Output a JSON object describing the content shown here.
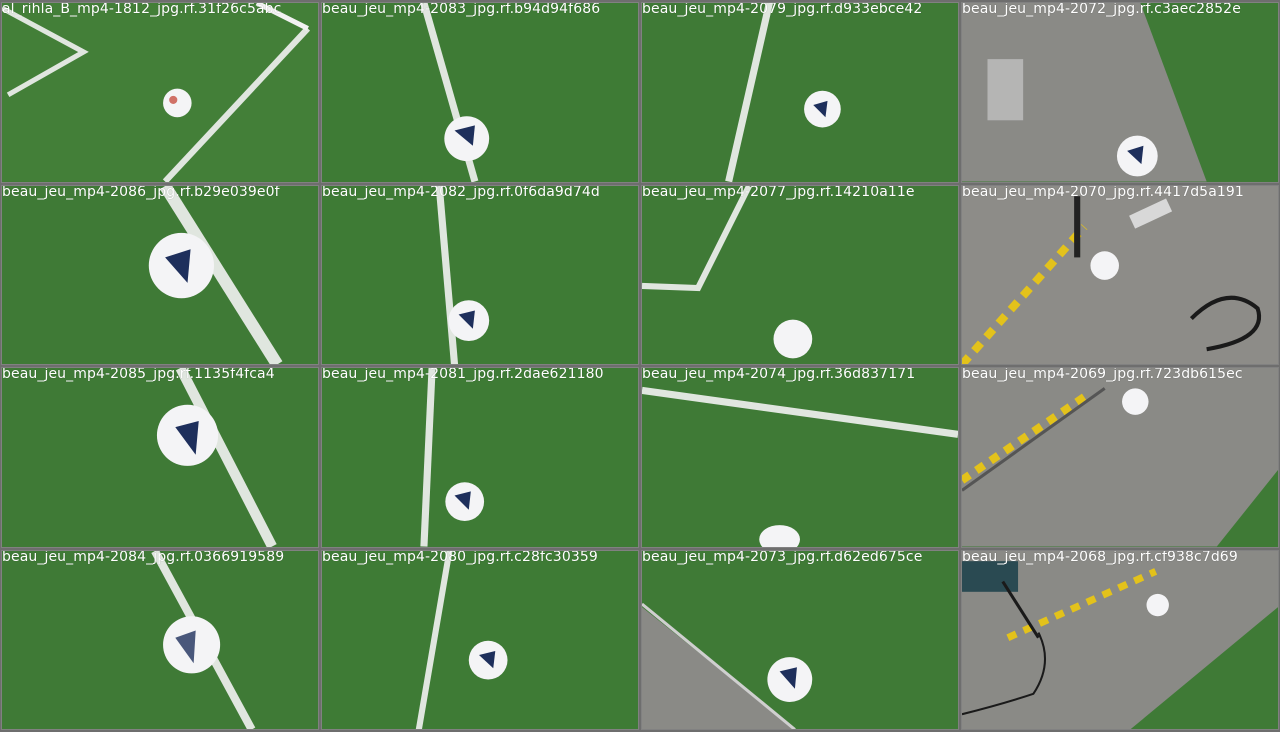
{
  "tiles": [
    {
      "caption": "al_rihla_B_mp4-1812_jpg.rf.31f26c5abc",
      "scene": "grass"
    },
    {
      "caption": "beau_jeu_mp4-2083_jpg.rf.b94d94f686",
      "scene": "grass"
    },
    {
      "caption": "beau_jeu_mp4-2079_jpg.rf.d933ebce42",
      "scene": "grass"
    },
    {
      "caption": "beau_jeu_mp4-2072_jpg.rf.c3aec2852e",
      "scene": "concrete"
    },
    {
      "caption": "beau_jeu_mp4-2086_jpg.rf.b29e039e0f",
      "scene": "grass"
    },
    {
      "caption": "beau_jeu_mp4-2082_jpg.rf.0f6da9d74d",
      "scene": "grass"
    },
    {
      "caption": "beau_jeu_mp4-2077_jpg.rf.14210a11e",
      "scene": "grass"
    },
    {
      "caption": "beau_jeu_mp4-2070_jpg.rf.4417d5a191",
      "scene": "concrete"
    },
    {
      "caption": "beau_jeu_mp4-2085_jpg.rf.1135f4fca4",
      "scene": "grass"
    },
    {
      "caption": "beau_jeu_mp4-2081_jpg.rf.2dae621180",
      "scene": "grass"
    },
    {
      "caption": "beau_jeu_mp4-2074_jpg.rf.36d837171",
      "scene": "grass"
    },
    {
      "caption": "beau_jeu_mp4-2069_jpg.rf.723db615ec",
      "scene": "concrete"
    },
    {
      "caption": "beau_jeu_mp4-2084_jpg.rf.0366919589",
      "scene": "grass"
    },
    {
      "caption": "beau_jeu_mp4-2080_jpg.rf.c28fc30359",
      "scene": "grass"
    },
    {
      "caption": "beau_jeu_mp4-2073_jpg.rf.d62ed675ce",
      "scene": "grass"
    },
    {
      "caption": "beau_jeu_mp4-2068_jpg.rf.cf938c7d69",
      "scene": "concrete"
    }
  ],
  "colors": {
    "grass": "#3f7a36",
    "grass_dark": "#356b2e",
    "concrete": "#8a8a86",
    "line": "#f2f2f2",
    "ball": "#f4f4f6",
    "ball_accent": "#1e2f5c",
    "hazard": "#e3c21b"
  }
}
